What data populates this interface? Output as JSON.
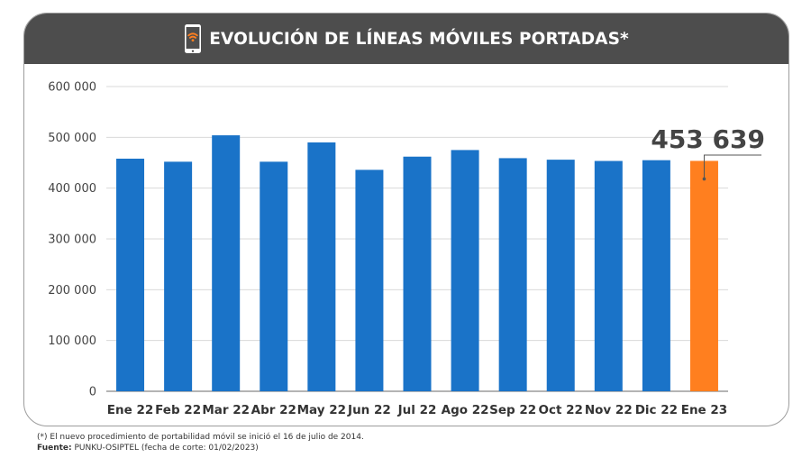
{
  "footnote": "(*) El nuevo procedimiento de portabilidad móvil se inició el 16 de julio de 2014.",
  "source": {
    "label": "Fuente:",
    "text": "PUNKU-OSIPTEL (fecha de corte: 01/02/2023)"
  },
  "colors": {
    "header": "#4d4d4d",
    "bar": "#1a73c8",
    "highlight": "#ff7f1f",
    "icon_signal": "#ff7f1f"
  },
  "icons": {
    "title_icon": "smartphone-signal-icon"
  },
  "chart_data": {
    "type": "bar",
    "title": "EVOLUCIÓN DE LÍNEAS MÓVILES PORTADAS*",
    "xlabel": "",
    "ylabel": "",
    "categories": [
      "Ene 22",
      "Feb 22",
      "Mar 22",
      "Abr 22",
      "May 22",
      "Jun 22",
      "Jul 22",
      "Ago 22",
      "Sep 22",
      "Oct 22",
      "Nov 22",
      "Dic 22",
      "Ene 23"
    ],
    "values": [
      458000,
      452000,
      504000,
      452000,
      490000,
      436000,
      462000,
      475000,
      459000,
      456000,
      453500,
      455000,
      453639
    ],
    "highlight_index": 12,
    "ylim": [
      0,
      600000
    ],
    "yticks": [
      0,
      100000,
      200000,
      300000,
      400000,
      500000,
      600000
    ],
    "ytick_labels": [
      "0",
      "100 000",
      "200 000",
      "300 000",
      "400 000",
      "500 000",
      "600 000"
    ],
    "grid": true,
    "legend": "none",
    "annotation": {
      "index": 12,
      "label": "453 639"
    }
  }
}
